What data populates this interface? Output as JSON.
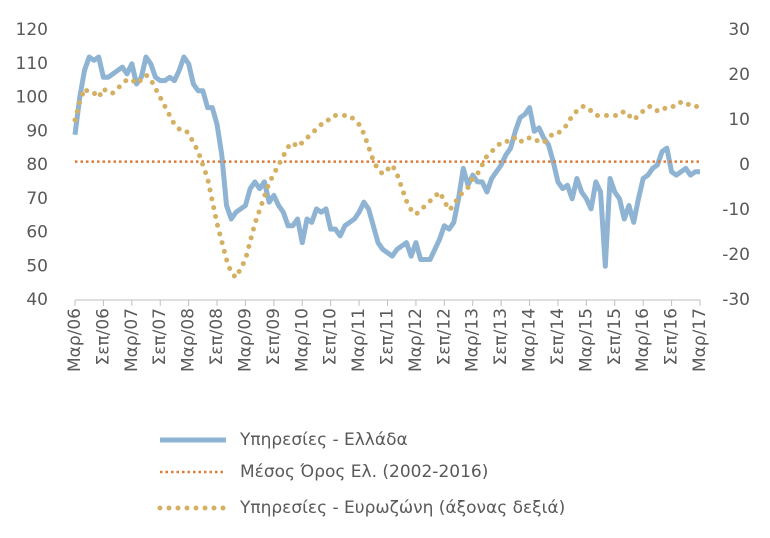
{
  "chart_data": {
    "type": "line",
    "categories": [
      "Μαρ/06",
      null,
      null,
      null,
      null,
      null,
      "Σεπ/06",
      null,
      null,
      null,
      null,
      null,
      "Μαρ/07",
      null,
      null,
      null,
      null,
      null,
      "Σεπ/07",
      null,
      null,
      null,
      null,
      null,
      "Μαρ/08",
      null,
      null,
      null,
      null,
      null,
      "Σεπ/08",
      null,
      null,
      null,
      null,
      null,
      "Μαρ/09",
      null,
      null,
      null,
      null,
      null,
      "Σεπ/09",
      null,
      null,
      null,
      null,
      null,
      "Μαρ/10",
      null,
      null,
      null,
      null,
      null,
      "Σεπ/10",
      null,
      null,
      null,
      null,
      null,
      "Μαρ/11",
      null,
      null,
      null,
      null,
      null,
      "Σεπ/11",
      null,
      null,
      null,
      null,
      null,
      "Μαρ/12",
      null,
      null,
      null,
      null,
      null,
      "Σεπ/12",
      null,
      null,
      null,
      null,
      null,
      "Μαρ/13",
      null,
      null,
      null,
      null,
      null,
      "Σεπ/13",
      null,
      null,
      null,
      null,
      null,
      "Μαρ/14",
      null,
      null,
      null,
      null,
      null,
      "Σεπ/14",
      null,
      null,
      null,
      null,
      null,
      "Μαρ/15",
      null,
      null,
      null,
      null,
      null,
      "Σεπ/15",
      null,
      null,
      null,
      null,
      null,
      "Μαρ/16",
      null,
      null,
      null,
      null,
      null,
      "Σεπ/16",
      null,
      null,
      null,
      null,
      null,
      "Μαρ/17"
    ],
    "series": [
      {
        "name": "Υπηρεσίες  - Ελλάδα",
        "color": "#8fb3d3",
        "style": "solid",
        "values": [
          89,
          100,
          108,
          112,
          111,
          112,
          106,
          106,
          107,
          108,
          109,
          107,
          110,
          104,
          106,
          112,
          110,
          106,
          105,
          105,
          106,
          105,
          108,
          112,
          110,
          104,
          102,
          102,
          97,
          97,
          92,
          83,
          68,
          64,
          66,
          67,
          68,
          73,
          75,
          73,
          75,
          69,
          71,
          68,
          66,
          62,
          62,
          64,
          57,
          64,
          63,
          67,
          66,
          67,
          61,
          61,
          59,
          62,
          63,
          64,
          66,
          69,
          67,
          62,
          57,
          55,
          54,
          53,
          55,
          56,
          57,
          53,
          57,
          52,
          52,
          52,
          55,
          58,
          62,
          61,
          63,
          70,
          79,
          74,
          77,
          75,
          75,
          72,
          76,
          78,
          80,
          83,
          85,
          90,
          94,
          95,
          97,
          90,
          91,
          88,
          86,
          81,
          75,
          73,
          74,
          70,
          76,
          72,
          70,
          67,
          75,
          72,
          50,
          76,
          72,
          70,
          64,
          68,
          63,
          70,
          76,
          77,
          79,
          80,
          84,
          85,
          78,
          77,
          78,
          79,
          77,
          78,
          78
        ]
      },
      {
        "name": "Μέσος Όρος Ελ. (2002-2016)",
        "color": "#e07b39",
        "style": "dotted-fine",
        "value": 81
      },
      {
        "name": "Υπηρεσίες - Ευρωζώνη (άξονας δεξιά)",
        "color": "#d4b062",
        "style": "dotted",
        "axis": "y2",
        "values": [
          10,
          14,
          17,
          16,
          16,
          15,
          17,
          16,
          16,
          17,
          18,
          19,
          19,
          18,
          19,
          20,
          19,
          17,
          15,
          13,
          11,
          9,
          8,
          8,
          7,
          5,
          3,
          0,
          -3,
          -8,
          -13,
          -17,
          -21,
          -24,
          -25,
          -23,
          -21,
          -17,
          -13,
          -10,
          -7,
          -4,
          -2,
          0,
          2,
          4,
          5,
          4,
          5,
          6,
          7,
          8,
          9,
          10,
          10,
          11,
          11,
          11,
          11,
          10,
          9,
          7,
          4,
          1,
          -1,
          -2,
          -1,
          0,
          -2,
          -5,
          -8,
          -10,
          -11,
          -10,
          -9,
          -8,
          -7,
          -6,
          -8,
          -10,
          -9,
          -7,
          -6,
          -5,
          -3,
          -2,
          0,
          2,
          3,
          4,
          5,
          5,
          6,
          6,
          5,
          6,
          6,
          6,
          5,
          5,
          6,
          7,
          7,
          8,
          9,
          11,
          12,
          13,
          13,
          12,
          11,
          11,
          11,
          11,
          11,
          11,
          12,
          11,
          10,
          11,
          12,
          13,
          13,
          12,
          12,
          13,
          13,
          13,
          14,
          14,
          13,
          13,
          13
        ]
      }
    ],
    "ylim": [
      40,
      120
    ],
    "yticks": [
      40,
      50,
      60,
      70,
      80,
      90,
      100,
      110,
      120
    ],
    "y2lim": [
      -30,
      30
    ],
    "y2ticks": [
      -30,
      -20,
      -10,
      0,
      10,
      20,
      30
    ],
    "grid": false
  }
}
